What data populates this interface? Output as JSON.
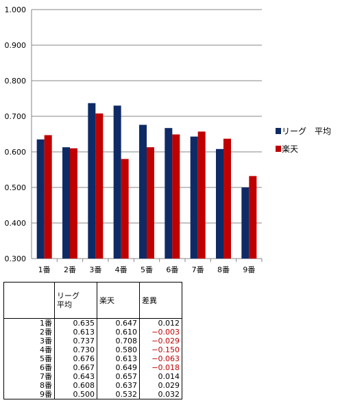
{
  "chart_data": {
    "type": "bar",
    "categories": [
      "1番",
      "2番",
      "3番",
      "4番",
      "5番",
      "6番",
      "7番",
      "8番",
      "9番"
    ],
    "series": [
      {
        "name": "リーグ　平均",
        "color": "#0f2b66",
        "values": [
          0.635,
          0.613,
          0.737,
          0.73,
          0.676,
          0.667,
          0.643,
          0.608,
          0.5
        ]
      },
      {
        "name": "楽天",
        "color": "#c00000",
        "values": [
          0.647,
          0.61,
          0.708,
          0.58,
          0.613,
          0.649,
          0.657,
          0.637,
          0.532
        ]
      }
    ],
    "ylim": [
      0.3,
      1.0
    ],
    "yticks": [
      "1.000",
      "0.900",
      "0.800",
      "0.700",
      "0.600",
      "0.500",
      "0.400",
      "0.300"
    ],
    "grid": true,
    "legend_position": "right"
  },
  "table": {
    "headers": [
      "",
      "リーグ\n平均",
      "楽天",
      "差異"
    ],
    "rows": [
      {
        "label": "1番",
        "league": "0.635",
        "rakuten": "0.647",
        "diff": "0.012",
        "negative": false
      },
      {
        "label": "2番",
        "league": "0.613",
        "rakuten": "0.610",
        "diff": "−0.003",
        "negative": true
      },
      {
        "label": "3番",
        "league": "0.737",
        "rakuten": "0.708",
        "diff": "−0.029",
        "negative": true
      },
      {
        "label": "4番",
        "league": "0.730",
        "rakuten": "0.580",
        "diff": "−0.150",
        "negative": true
      },
      {
        "label": "5番",
        "league": "0.676",
        "rakuten": "0.613",
        "diff": "−0.063",
        "negative": true
      },
      {
        "label": "6番",
        "league": "0.667",
        "rakuten": "0.649",
        "diff": "−0.018",
        "negative": true
      },
      {
        "label": "7番",
        "league": "0.643",
        "rakuten": "0.657",
        "diff": "0.014",
        "negative": false
      },
      {
        "label": "8番",
        "league": "0.608",
        "rakuten": "0.637",
        "diff": "0.029",
        "negative": false
      },
      {
        "label": "9番",
        "league": "0.500",
        "rakuten": "0.532",
        "diff": "0.032",
        "negative": false
      }
    ]
  }
}
